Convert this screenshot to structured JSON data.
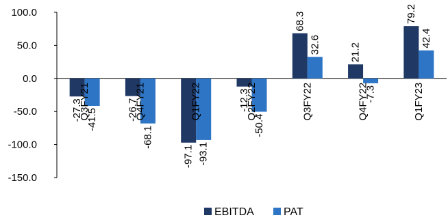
{
  "chart_data": {
    "type": "bar",
    "categories": [
      "Q3FY21",
      "Q4FY21",
      "Q1FY22",
      "Q2FY22",
      "Q3FY22",
      "Q4FY22",
      "Q1FY23"
    ],
    "series": [
      {
        "name": "EBITDA",
        "values": [
          -27.3,
          -26.7,
          -97.1,
          -12.3,
          68.3,
          21.2,
          79.2
        ],
        "color": "#1f3864"
      },
      {
        "name": "PAT",
        "values": [
          -41.5,
          -68.1,
          -93.1,
          -50.4,
          32.6,
          -7.3,
          42.4
        ],
        "color": "#2e75c6"
      }
    ],
    "y_ticks": [
      "100.0",
      "50.0",
      "0.0",
      "-50.0",
      "-100.0",
      "-150.0"
    ],
    "ylim": [
      -150,
      100
    ],
    "grid": false,
    "legend_position": "bottom"
  }
}
